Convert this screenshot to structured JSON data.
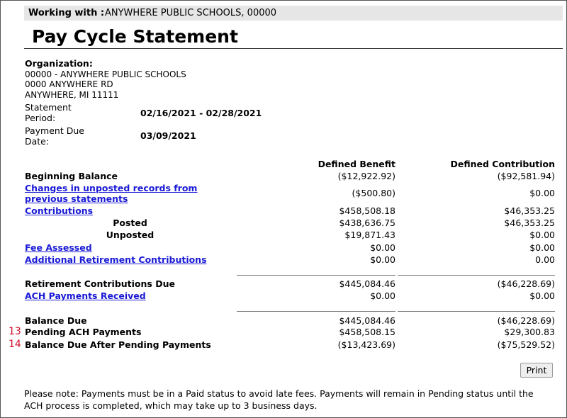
{
  "header": {
    "working_with_label": "Working with :",
    "working_with_value": "ANYWHERE PUBLIC SCHOOLS, 00000",
    "title": "Pay Cycle Statement"
  },
  "organization": {
    "label": "Organization:",
    "lines": [
      "00000 - ANYWHERE PUBLIC SCHOOLS",
      "0000 ANYWHERE RD",
      "ANYWHERE, MI 11111"
    ]
  },
  "statement_period": {
    "label": "Statement Period:",
    "value": "02/16/2021 - 02/28/2021"
  },
  "payment_due_date": {
    "label": "Payment Due Date:",
    "value": "03/09/2021"
  },
  "table": {
    "columns": [
      "Defined Benefit",
      "Defined Contribution"
    ],
    "rows": [
      {
        "label": "Beginning Balance",
        "values": [
          "($12,922.92)",
          "($92,581.94)"
        ]
      },
      {
        "label": "Changes in unposted records from previous statements",
        "values": [
          "($500.80)",
          "$0.00"
        ]
      },
      {
        "label": "Contributions",
        "values": [
          "$458,508.18",
          "$46,353.25"
        ]
      },
      {
        "label": "Posted",
        "values": [
          "$438,636.75",
          "$46,353.25"
        ]
      },
      {
        "label": "Unposted",
        "values": [
          "$19,871.43",
          "$0.00"
        ]
      },
      {
        "label": "Fee Assessed",
        "values": [
          "$0.00",
          "$0.00"
        ]
      },
      {
        "label": "Additional Retirement Contributions",
        "values": [
          "$0.00",
          "0.00"
        ]
      },
      {
        "label": "Retirement Contributions Due",
        "values": [
          "$445,084.46",
          "($46,228.69)"
        ]
      },
      {
        "label": "ACH Payments Received",
        "values": [
          "$0.00",
          "$0.00"
        ]
      },
      {
        "label": "Balance Due",
        "values": [
          "$445,084.46",
          "($46,228.69)"
        ]
      },
      {
        "marker": "13",
        "label": "Pending ACH Payments",
        "values": [
          "$458,508.15",
          "$29,300.83"
        ]
      },
      {
        "marker": "14",
        "label": "Balance Due After Pending Payments",
        "values": [
          "($13,423.69)",
          "($75,529.52)"
        ]
      }
    ]
  },
  "print_button": "Print",
  "note": "Please note: Payments must be in a Paid status to avoid late fees. Payments will remain in Pending status until the ACH process is completed, which may take up to 3 business days."
}
